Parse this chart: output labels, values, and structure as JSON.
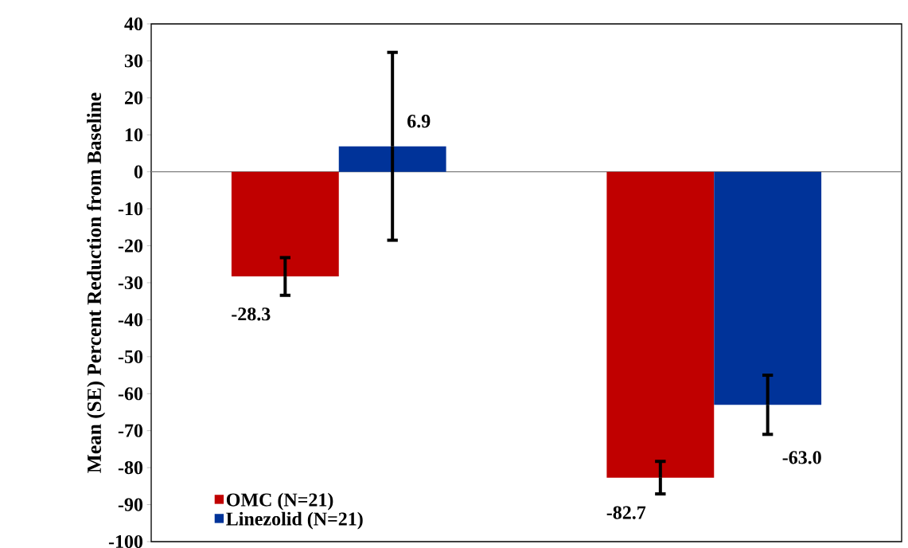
{
  "chart_data": {
    "type": "bar",
    "ylabel": "Mean (SE) Percent Reduction from Baseline",
    "categories": [
      null,
      null
    ],
    "series": [
      {
        "name": "OMC (N=21)",
        "color": "#c00000",
        "values": [
          -28.3,
          -82.7
        ],
        "errors": [
          5.1,
          4.4
        ],
        "value_labels": [
          "-28.3",
          "-82.7"
        ]
      },
      {
        "name": "Linezolid (N=21)",
        "color": "#003399",
        "values": [
          6.9,
          -63.0
        ],
        "errors": [
          25.4,
          8.0
        ],
        "value_labels": [
          "6.9",
          "-63.0"
        ]
      }
    ],
    "ylim": [
      -100,
      40
    ],
    "yticks": [
      -100,
      -90,
      -80,
      -70,
      -60,
      -50,
      -40,
      -30,
      -20,
      -10,
      0,
      10,
      20,
      30,
      40
    ],
    "legend": "bottom left"
  }
}
